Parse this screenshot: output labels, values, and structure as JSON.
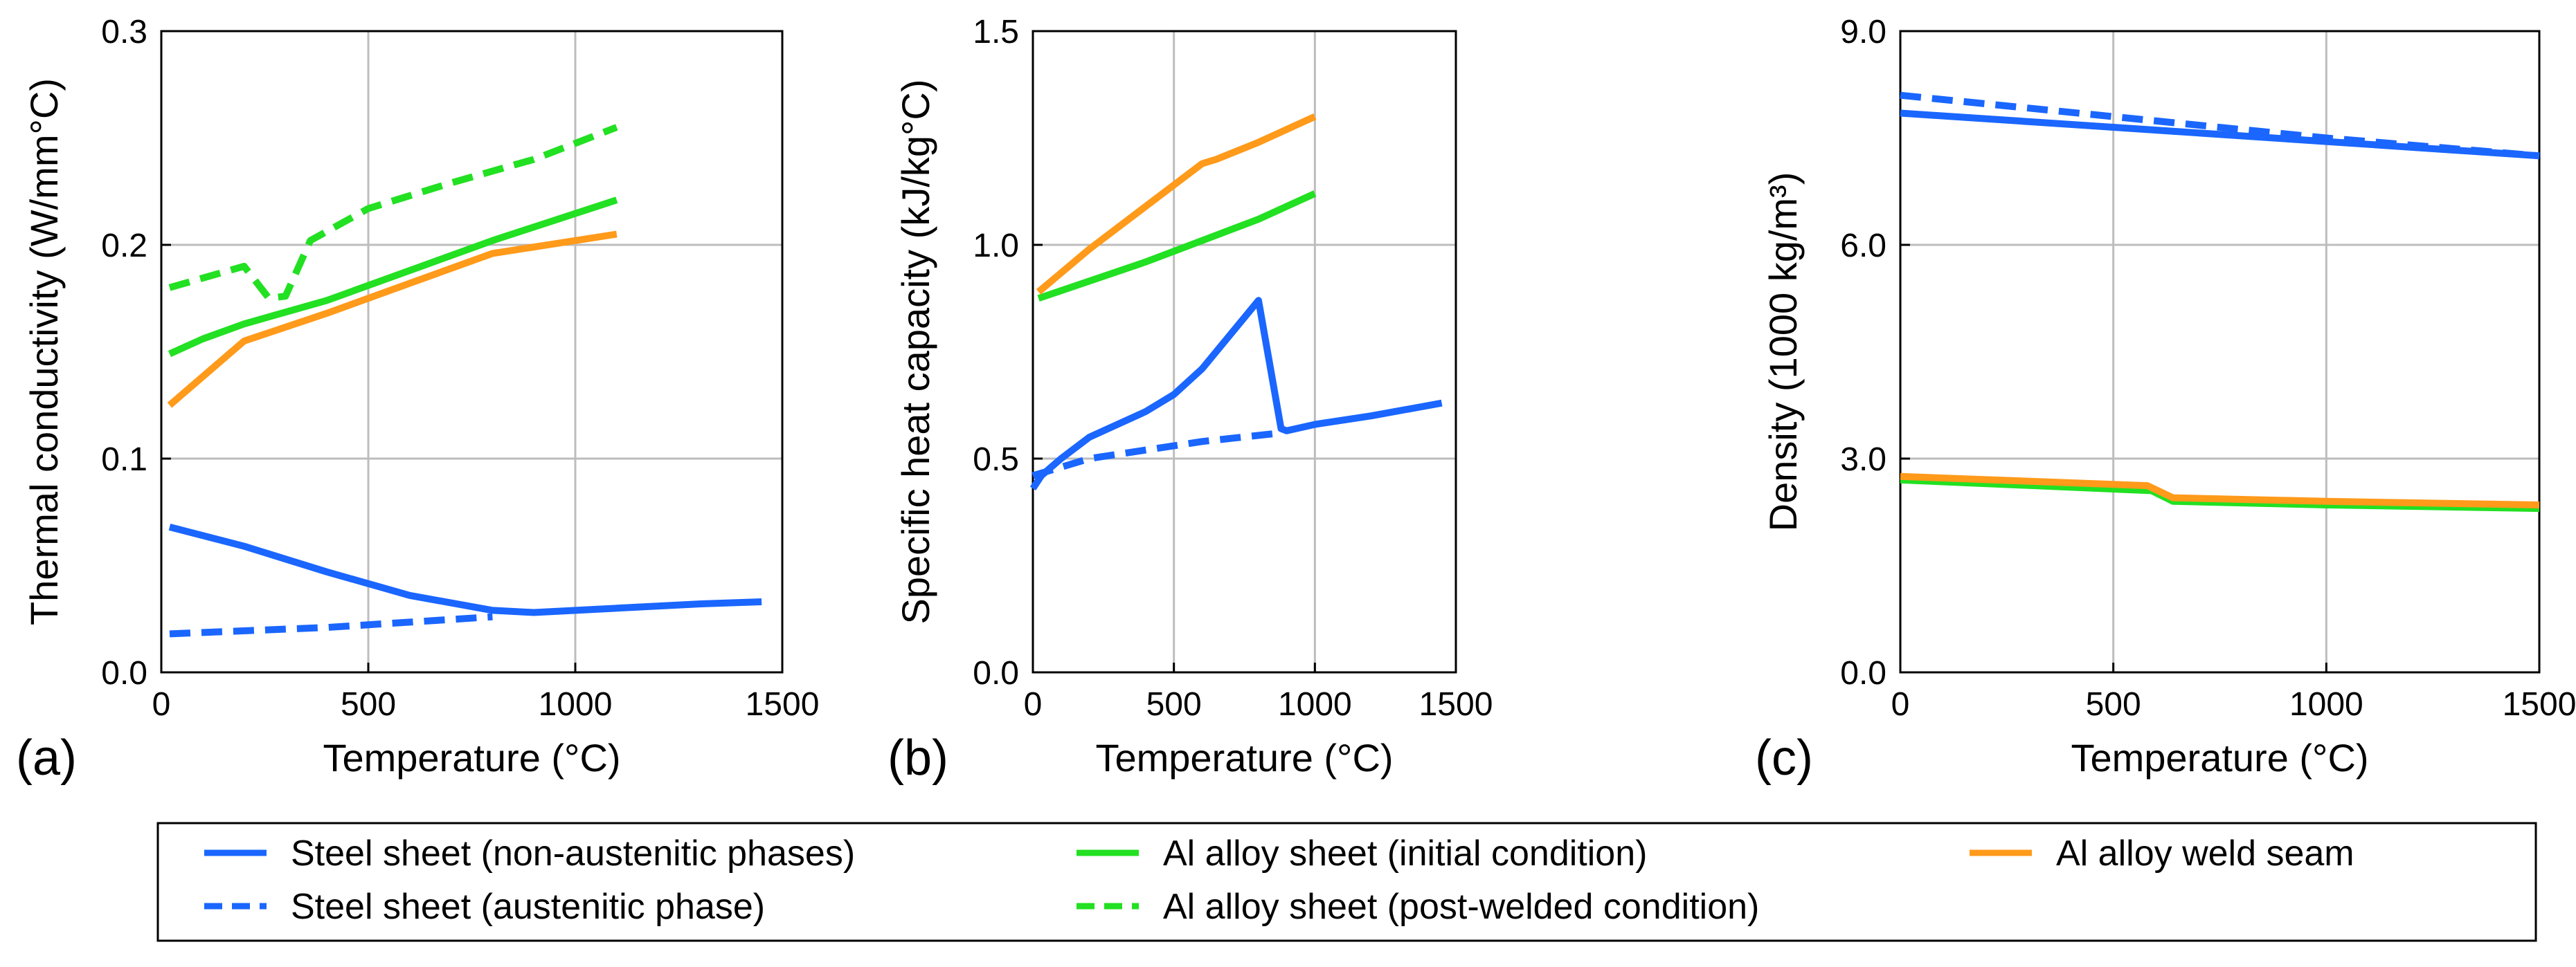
{
  "legend": {
    "items": [
      {
        "key": "steel_non",
        "label": "Steel sheet (non-austenitic phases)",
        "color": "#1a66ff",
        "dash": false
      },
      {
        "key": "steel_aus",
        "label": "Steel sheet (austenitic phase)",
        "color": "#1a66ff",
        "dash": true
      },
      {
        "key": "al_init",
        "label": "Al alloy sheet (initial condition)",
        "color": "#22e022",
        "dash": false
      },
      {
        "key": "al_post",
        "label": "Al alloy sheet (post-welded condition)",
        "color": "#22e022",
        "dash": true
      },
      {
        "key": "al_weld",
        "label": "Al alloy weld seam",
        "color": "#ff9a1a",
        "dash": false
      }
    ]
  },
  "chart_data": [
    {
      "type": "line",
      "panel_label": "(a)",
      "xlabel": "Temperature (°C)",
      "ylabel": "Thermal conductivity (W/mm°C)",
      "xlim": [
        0,
        1500
      ],
      "ylim": [
        0,
        0.3
      ],
      "xticks": [
        0,
        500,
        1000,
        1500
      ],
      "xtick_labels": [
        "0",
        "500",
        "1000",
        "1500"
      ],
      "yticks": [
        0,
        0.1,
        0.2,
        0.3
      ],
      "ytick_labels": [
        "0.0",
        "0.1",
        "0.2",
        "0.3"
      ],
      "grid": true,
      "series": [
        {
          "key": "steel_non",
          "x": [
            20,
            200,
            400,
            600,
            800,
            900,
            1100,
            1300,
            1450
          ],
          "y": [
            0.068,
            0.059,
            0.047,
            0.036,
            0.029,
            0.028,
            0.03,
            0.032,
            0.033
          ]
        },
        {
          "key": "steel_aus",
          "x": [
            20,
            400,
            800
          ],
          "y": [
            0.018,
            0.021,
            0.026
          ]
        },
        {
          "key": "al_init",
          "x": [
            20,
            100,
            200,
            400,
            600,
            800,
            1100
          ],
          "y": [
            0.149,
            0.156,
            0.163,
            0.174,
            0.188,
            0.202,
            0.221
          ]
        },
        {
          "key": "al_post",
          "x": [
            20,
            200,
            260,
            300,
            360,
            500,
            700,
            900,
            1100
          ],
          "y": [
            0.18,
            0.19,
            0.175,
            0.176,
            0.202,
            0.217,
            0.229,
            0.24,
            0.255
          ]
        },
        {
          "key": "al_weld",
          "x": [
            20,
            200,
            400,
            600,
            800,
            1100
          ],
          "y": [
            0.125,
            0.155,
            0.168,
            0.182,
            0.196,
            0.205
          ]
        }
      ]
    },
    {
      "type": "line",
      "panel_label": "(b)",
      "xlabel": "Temperature (°C)",
      "ylabel": "Specific heat capacity (kJ/kg°C)",
      "xlim": [
        0,
        1500
      ],
      "ylim": [
        0,
        1.5
      ],
      "xticks": [
        0,
        500,
        1000,
        1500
      ],
      "xtick_labels": [
        "0",
        "500",
        "1000",
        "1500"
      ],
      "yticks": [
        0,
        0.5,
        1.0,
        1.5
      ],
      "ytick_labels": [
        "0.0",
        "0.5",
        "1.0",
        "1.5"
      ],
      "grid": true,
      "series": [
        {
          "key": "steel_non",
          "x": [
            0,
            30,
            100,
            200,
            300,
            400,
            500,
            600,
            700,
            800,
            880,
            900,
            1000,
            1200,
            1450
          ],
          "y": [
            0.43,
            0.46,
            0.5,
            0.55,
            0.58,
            0.61,
            0.65,
            0.71,
            0.79,
            0.87,
            0.57,
            0.565,
            0.58,
            0.6,
            0.63
          ]
        },
        {
          "key": "steel_aus",
          "x": [
            0,
            200,
            400,
            600,
            880
          ],
          "y": [
            0.46,
            0.5,
            0.52,
            0.54,
            0.56
          ]
        },
        {
          "key": "al_init",
          "x": [
            20,
            400,
            600,
            800,
            1000
          ],
          "y": [
            0.875,
            0.96,
            1.01,
            1.06,
            1.12
          ]
        },
        {
          "key": "al_weld",
          "x": [
            20,
            200,
            400,
            600,
            650,
            800,
            1000
          ],
          "y": [
            0.89,
            0.99,
            1.09,
            1.19,
            1.2,
            1.24,
            1.3
          ]
        }
      ]
    },
    {
      "type": "line",
      "panel_label": "(c)",
      "xlabel": "Temperature (°C)",
      "ylabel": "Density (1000 kg/m³)",
      "xlim": [
        0,
        1500
      ],
      "ylim": [
        0,
        9
      ],
      "xticks": [
        0,
        500,
        1000,
        1500
      ],
      "xtick_labels": [
        "0",
        "500",
        "1000",
        "1500"
      ],
      "yticks": [
        0,
        3,
        6,
        9
      ],
      "ytick_labels": [
        "0.0",
        "3.0",
        "6.0",
        "9.0"
      ],
      "grid": true,
      "series": [
        {
          "key": "steel_non",
          "x": [
            0,
            500,
            1000,
            1500
          ],
          "y": [
            7.85,
            7.65,
            7.45,
            7.25
          ]
        },
        {
          "key": "steel_aus",
          "x": [
            0,
            500,
            1000,
            1500
          ],
          "y": [
            8.1,
            7.8,
            7.5,
            7.25
          ]
        },
        {
          "key": "al_init",
          "x": [
            0,
            590,
            640,
            1000,
            1500
          ],
          "y": [
            2.7,
            2.55,
            2.4,
            2.35,
            2.3
          ]
        },
        {
          "key": "al_weld",
          "x": [
            0,
            580,
            640,
            1000,
            1500
          ],
          "y": [
            2.75,
            2.62,
            2.45,
            2.4,
            2.35
          ]
        }
      ]
    }
  ]
}
